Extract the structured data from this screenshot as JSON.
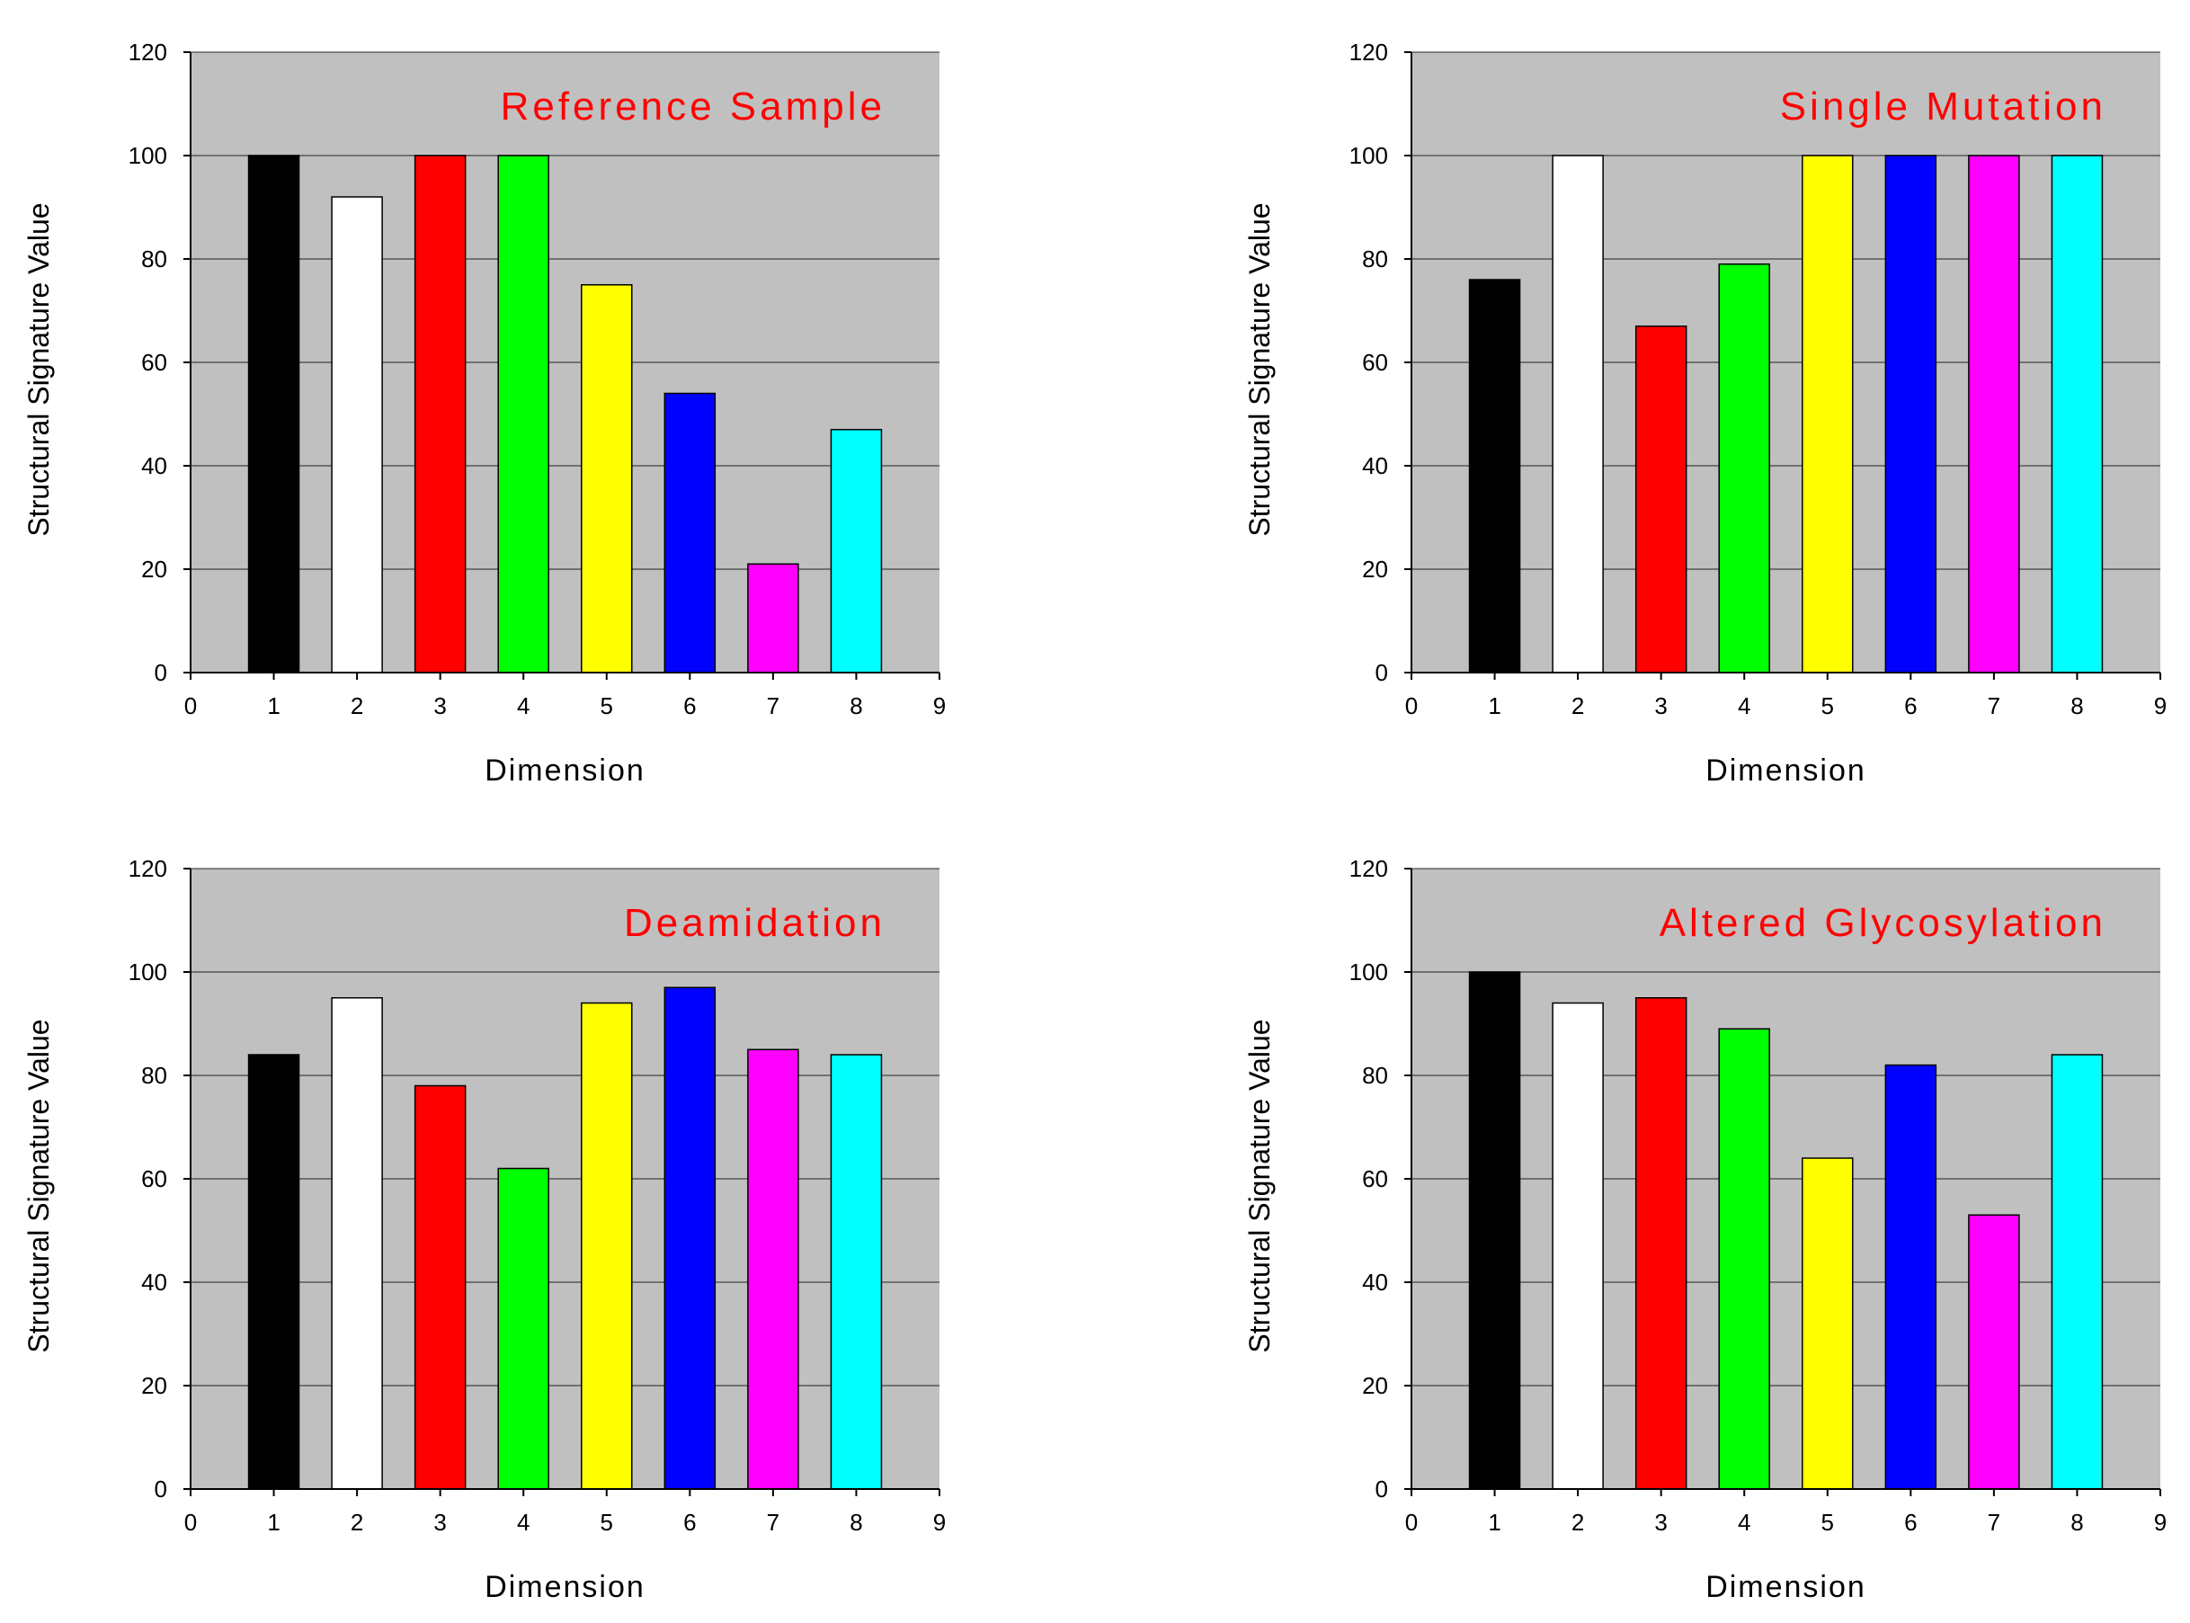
{
  "chart_data": [
    {
      "type": "bar",
      "title": "Reference Sample",
      "xlabel": "Dimension",
      "ylabel": "Structural Signature Value",
      "x": [
        1,
        2,
        3,
        4,
        5,
        6,
        7,
        8
      ],
      "values": [
        100,
        92,
        100,
        100,
        75,
        54,
        21,
        47
      ],
      "xlim": [
        0,
        9
      ],
      "ylim": [
        0,
        120
      ],
      "xticks": [
        "0",
        "1",
        "2",
        "3",
        "4",
        "5",
        "6",
        "7",
        "8",
        "9"
      ],
      "yticks": [
        "0",
        "20",
        "40",
        "60",
        "80",
        "100",
        "120"
      ],
      "grid": true,
      "legend": null
    },
    {
      "type": "bar",
      "title": "Single Mutation",
      "xlabel": "Dimension",
      "ylabel": "Structural Signature Value",
      "x": [
        1,
        2,
        3,
        4,
        5,
        6,
        7,
        8
      ],
      "values": [
        76,
        100,
        67,
        79,
        100,
        100,
        100,
        100
      ],
      "xlim": [
        0,
        9
      ],
      "ylim": [
        0,
        120
      ],
      "xticks": [
        "0",
        "1",
        "2",
        "3",
        "4",
        "5",
        "6",
        "7",
        "8",
        "9"
      ],
      "yticks": [
        "0",
        "20",
        "40",
        "60",
        "80",
        "100",
        "120"
      ],
      "grid": true,
      "legend": null
    },
    {
      "type": "bar",
      "title": "Deamidation",
      "xlabel": "Dimension",
      "ylabel": "Structural Signature Value",
      "x": [
        1,
        2,
        3,
        4,
        5,
        6,
        7,
        8
      ],
      "values": [
        84,
        95,
        78,
        62,
        94,
        97,
        85,
        84
      ],
      "xlim": [
        0,
        9
      ],
      "ylim": [
        0,
        120
      ],
      "xticks": [
        "0",
        "1",
        "2",
        "3",
        "4",
        "5",
        "6",
        "7",
        "8",
        "9"
      ],
      "yticks": [
        "0",
        "20",
        "40",
        "60",
        "80",
        "100",
        "120"
      ],
      "grid": true,
      "legend": null
    },
    {
      "type": "bar",
      "title": "Altered Glycosylation",
      "xlabel": "Dimension",
      "ylabel": "Structural Signature Value",
      "x": [
        1,
        2,
        3,
        4,
        5,
        6,
        7,
        8
      ],
      "values": [
        100,
        94,
        95,
        89,
        64,
        82,
        53,
        84
      ],
      "xlim": [
        0,
        9
      ],
      "ylim": [
        0,
        120
      ],
      "xticks": [
        "0",
        "1",
        "2",
        "3",
        "4",
        "5",
        "6",
        "7",
        "8",
        "9"
      ],
      "yticks": [
        "0",
        "20",
        "40",
        "60",
        "80",
        "100",
        "120"
      ],
      "grid": true,
      "legend": null
    }
  ],
  "colors": {
    "bars": [
      "#000000",
      "#ffffff",
      "#ff0000",
      "#00ff00",
      "#ffff00",
      "#0000ff",
      "#ff00ff",
      "#00ffff"
    ],
    "plot_background": "#c0c0c0",
    "title": "#ff0000",
    "gridline": "#000000",
    "text": "#000000"
  }
}
